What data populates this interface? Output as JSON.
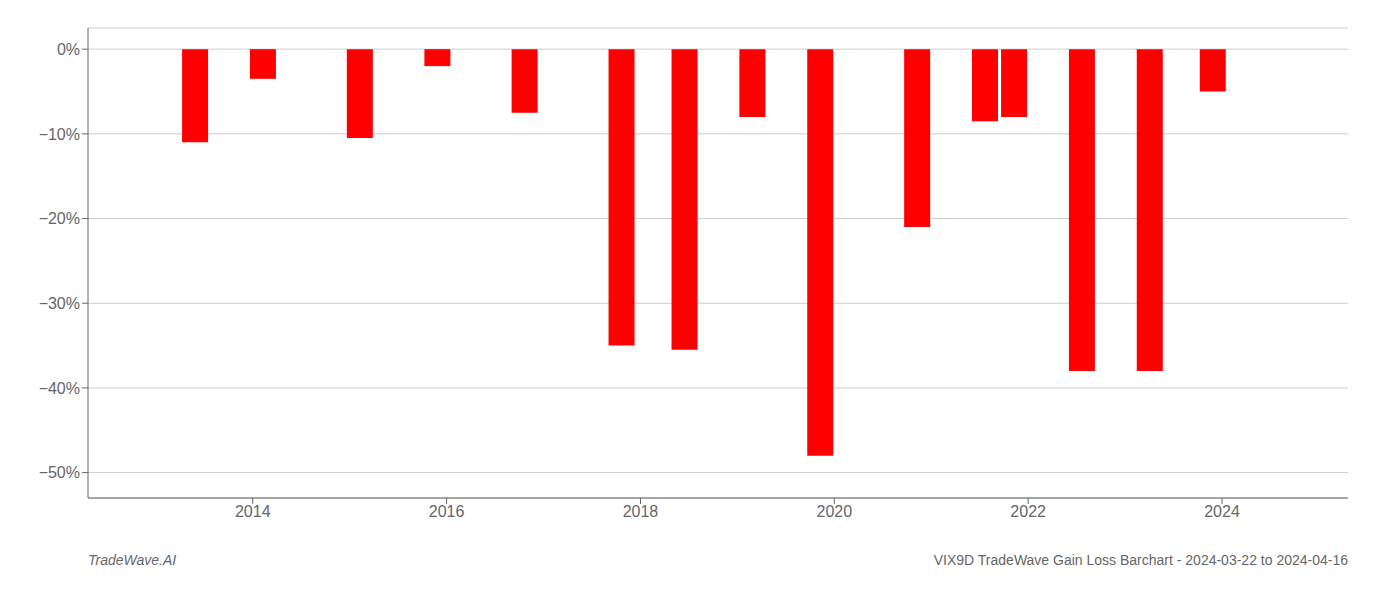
{
  "chart_data": {
    "type": "bar",
    "x": [
      2013.4,
      2014.1,
      2015.1,
      2015.9,
      2016.8,
      2017.8,
      2018.45,
      2019.15,
      2019.85,
      2020.85,
      2021.55,
      2021.85,
      2022.55,
      2023.25,
      2023.9
    ],
    "values": [
      -11.0,
      -3.5,
      -10.5,
      -2.0,
      -7.5,
      -35.0,
      -35.5,
      -8.0,
      -48.0,
      -21.0,
      -8.5,
      -8.0,
      -38.0,
      -38.0,
      -5.0
    ],
    "color": "#ff0000",
    "xlim": [
      2012.3,
      2025.3
    ],
    "xticks": [
      2014,
      2016,
      2018,
      2020,
      2022,
      2024
    ],
    "ylim": [
      -53,
      2.5
    ],
    "yticks": [
      {
        "value": 0,
        "label": "0%"
      },
      {
        "value": -10,
        "label": "−10%"
      },
      {
        "value": -20,
        "label": "−20%"
      },
      {
        "value": -30,
        "label": "−30%"
      },
      {
        "value": -40,
        "label": "−40%"
      },
      {
        "value": -50,
        "label": "−50%"
      }
    ],
    "grid": true,
    "annotations": [
      "TradeWave.AI",
      "VIX9D TradeWave Gain Loss Barchart - 2024-03-22 to 2024-04-16"
    ]
  }
}
